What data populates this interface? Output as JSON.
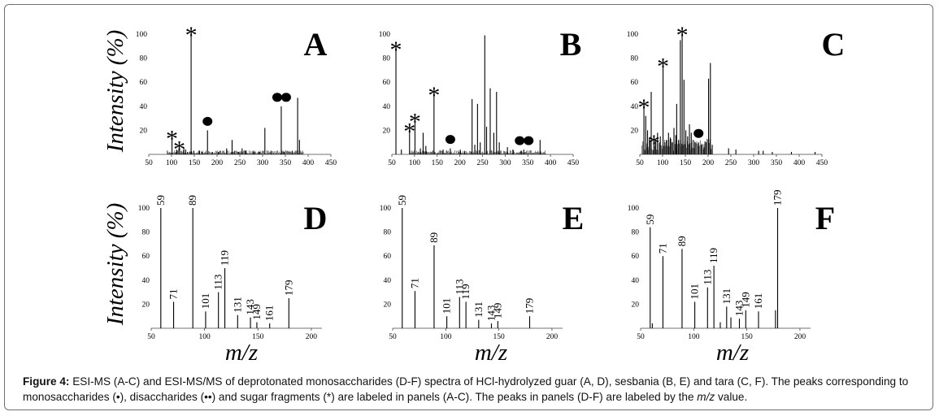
{
  "figure": {
    "y_axis_label": "Intensity (%)",
    "x_axis_label": "m/z",
    "caption_label": "Figure 4:",
    "caption_text_1": "ESI-MS (A-C) and ESI-MS/MS of deprotonated monosaccharides (D-F) spectra of HCl-hydrolyzed guar (A, D), sesbania (B, E) and tara (C, F). The peaks corresponding to monosaccharides (•), disaccharides (••) and sugar fragments (*) are labeled in panels (A-C). The peaks in panels (D-F) are labeled by the ",
    "caption_mz": "m/z",
    "caption_text_2": " value."
  },
  "chart_data": [
    {
      "type": "bar",
      "panel": "A",
      "xlim": [
        50,
        450
      ],
      "ylim": [
        0,
        100
      ],
      "xticks": [
        50,
        100,
        150,
        200,
        250,
        300,
        350,
        400,
        450
      ],
      "yticks": [
        20,
        40,
        60,
        80,
        100
      ],
      "peaks": [
        [
          101,
          14
        ],
        [
          111,
          4
        ],
        [
          117,
          5
        ],
        [
          121,
          3
        ],
        [
          127,
          6
        ],
        [
          131,
          4
        ],
        [
          135,
          2
        ],
        [
          143,
          100
        ],
        [
          149,
          3
        ],
        [
          161,
          3
        ],
        [
          167,
          2
        ],
        [
          179,
          20
        ],
        [
          189,
          2
        ],
        [
          203,
          2
        ],
        [
          221,
          5
        ],
        [
          233,
          12
        ],
        [
          239,
          3
        ],
        [
          247,
          2
        ],
        [
          255,
          5
        ],
        [
          263,
          3
        ],
        [
          281,
          3
        ],
        [
          293,
          2
        ],
        [
          305,
          22
        ],
        [
          319,
          3
        ],
        [
          341,
          40
        ],
        [
          347,
          2
        ],
        [
          365,
          3
        ],
        [
          377,
          47
        ],
        [
          381,
          12
        ]
      ],
      "annotations": [
        {
          "x": 101,
          "y": 14,
          "symbol": "*"
        },
        {
          "x": 117,
          "y": 5,
          "symbol": "*"
        },
        {
          "x": 143,
          "y": 100,
          "symbol": "*"
        },
        {
          "x": 179,
          "y": 20,
          "symbol": "•"
        },
        {
          "x": 341,
          "y": 40,
          "symbol": "••"
        }
      ]
    },
    {
      "type": "bar",
      "panel": "B",
      "xlim": [
        50,
        450
      ],
      "ylim": [
        0,
        100
      ],
      "xticks": [
        50,
        100,
        150,
        200,
        250,
        300,
        350,
        400,
        450
      ],
      "yticks": [
        20,
        40,
        60,
        80,
        100
      ],
      "peaks": [
        [
          59,
          88
        ],
        [
          71,
          4
        ],
        [
          89,
          20
        ],
        [
          101,
          28
        ],
        [
          113,
          5
        ],
        [
          119,
          18
        ],
        [
          125,
          7
        ],
        [
          143,
          50
        ],
        [
          163,
          4
        ],
        [
          179,
          5
        ],
        [
          201,
          4
        ],
        [
          211,
          3
        ],
        [
          227,
          46
        ],
        [
          233,
          8
        ],
        [
          239,
          42
        ],
        [
          245,
          10
        ],
        [
          255,
          99
        ],
        [
          259,
          23
        ],
        [
          267,
          55
        ],
        [
          275,
          18
        ],
        [
          281,
          52
        ],
        [
          287,
          10
        ],
        [
          305,
          6
        ],
        [
          317,
          4
        ],
        [
          335,
          3
        ],
        [
          341,
          4
        ],
        [
          377,
          12
        ]
      ],
      "annotations": [
        {
          "x": 59,
          "y": 88,
          "symbol": "*"
        },
        {
          "x": 89,
          "y": 20,
          "symbol": "*"
        },
        {
          "x": 101,
          "y": 28,
          "symbol": "*"
        },
        {
          "x": 143,
          "y": 50,
          "symbol": "*"
        },
        {
          "x": 179,
          "y": 5,
          "symbol": "•"
        },
        {
          "x": 341,
          "y": 4,
          "symbol": "••"
        }
      ]
    },
    {
      "type": "bar",
      "panel": "C",
      "xlim": [
        50,
        450
      ],
      "ylim": [
        0,
        100
      ],
      "xticks": [
        50,
        100,
        150,
        200,
        250,
        300,
        350,
        400,
        450
      ],
      "yticks": [
        20,
        40,
        60,
        80,
        100
      ],
      "peaks": [
        [
          59,
          40
        ],
        [
          63,
          32
        ],
        [
          67,
          20
        ],
        [
          71,
          14
        ],
        [
          75,
          52
        ],
        [
          81,
          10
        ],
        [
          85,
          12
        ],
        [
          89,
          18
        ],
        [
          95,
          15
        ],
        [
          101,
          74
        ],
        [
          105,
          10
        ],
        [
          109,
          12
        ],
        [
          113,
          18
        ],
        [
          117,
          14
        ],
        [
          121,
          10
        ],
        [
          125,
          22
        ],
        [
          129,
          16
        ],
        [
          131,
          42
        ],
        [
          135,
          12
        ],
        [
          139,
          95
        ],
        [
          143,
          100
        ],
        [
          147,
          62
        ],
        [
          151,
          20
        ],
        [
          155,
          15
        ],
        [
          159,
          25
        ],
        [
          163,
          18
        ],
        [
          167,
          12
        ],
        [
          171,
          10
        ],
        [
          179,
          10
        ],
        [
          185,
          8
        ],
        [
          191,
          6
        ],
        [
          195,
          10
        ],
        [
          201,
          63
        ],
        [
          205,
          76
        ],
        [
          209,
          8
        ],
        [
          245,
          5
        ],
        [
          261,
          4
        ],
        [
          311,
          3
        ],
        [
          321,
          3
        ],
        [
          341,
          2
        ],
        [
          383,
          2
        ],
        [
          435,
          2
        ]
      ],
      "annotations": [
        {
          "x": 59,
          "y": 40,
          "symbol": "*"
        },
        {
          "x": 81,
          "y": 10,
          "symbol": "*"
        },
        {
          "x": 101,
          "y": 74,
          "symbol": "*"
        },
        {
          "x": 143,
          "y": 100,
          "symbol": "*"
        },
        {
          "x": 179,
          "y": 10,
          "symbol": "•"
        }
      ]
    },
    {
      "type": "bar",
      "panel": "D",
      "xlim": [
        50,
        210
      ],
      "ylim": [
        0,
        100
      ],
      "xticks": [
        50,
        100,
        150,
        200
      ],
      "yticks": [
        20,
        40,
        60,
        80,
        100
      ],
      "peaks": [
        [
          59,
          100
        ],
        [
          71,
          22
        ],
        [
          89,
          100
        ],
        [
          101,
          14
        ],
        [
          113,
          30
        ],
        [
          119,
          50
        ],
        [
          131,
          11
        ],
        [
          143,
          9
        ],
        [
          149,
          5
        ],
        [
          161,
          4
        ],
        [
          179,
          25
        ]
      ],
      "labels": [
        "59",
        "71",
        "89",
        "101",
        "113",
        "119",
        "131",
        "143",
        "149",
        "161",
        "179"
      ]
    },
    {
      "type": "bar",
      "panel": "E",
      "xlim": [
        50,
        210
      ],
      "ylim": [
        0,
        100
      ],
      "xticks": [
        50,
        100,
        150,
        200
      ],
      "yticks": [
        20,
        40,
        60,
        80,
        100
      ],
      "peaks": [
        [
          59,
          100
        ],
        [
          71,
          31
        ],
        [
          89,
          69
        ],
        [
          101,
          10
        ],
        [
          113,
          26
        ],
        [
          119,
          22
        ],
        [
          131,
          7
        ],
        [
          143,
          4
        ],
        [
          149,
          6
        ],
        [
          179,
          10
        ]
      ],
      "labels": [
        "59",
        "71",
        "89",
        "101",
        "113",
        "119",
        "131",
        "143",
        "149",
        "179"
      ]
    },
    {
      "type": "bar",
      "panel": "F",
      "xlim": [
        50,
        210
      ],
      "ylim": [
        0,
        100
      ],
      "xticks": [
        50,
        100,
        150,
        200
      ],
      "yticks": [
        20,
        40,
        60,
        80,
        100
      ],
      "peaks": [
        [
          59,
          84
        ],
        [
          61,
          4
        ],
        [
          71,
          60
        ],
        [
          89,
          66
        ],
        [
          101,
          22
        ],
        [
          113,
          34
        ],
        [
          119,
          52
        ],
        [
          125,
          5
        ],
        [
          131,
          18
        ],
        [
          135,
          9
        ],
        [
          143,
          8
        ],
        [
          149,
          15
        ],
        [
          161,
          14
        ],
        [
          177,
          15
        ],
        [
          179,
          100
        ]
      ],
      "labels": [
        "59",
        "71",
        "89",
        "101",
        "113",
        "119",
        "131",
        "143",
        "149",
        "161",
        "179"
      ]
    }
  ]
}
